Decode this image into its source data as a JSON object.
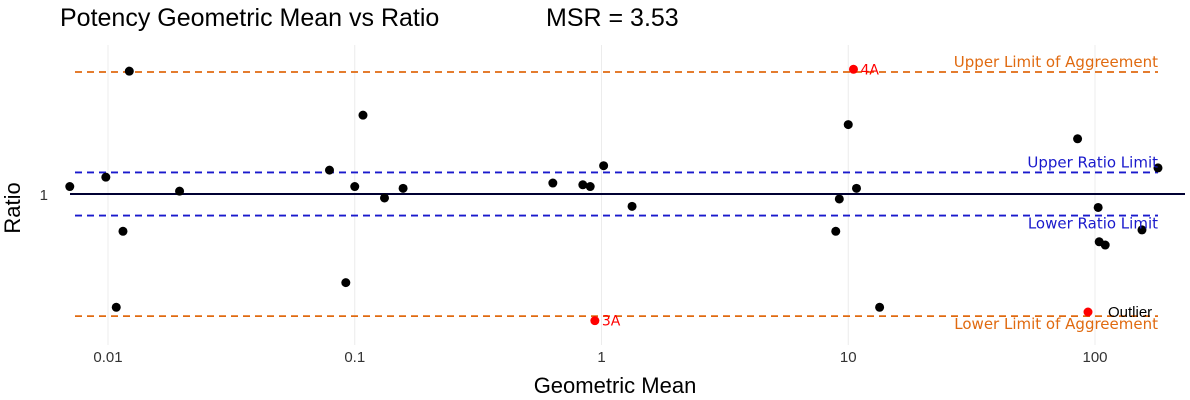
{
  "chart_data": {
    "type": "scatter",
    "title": "Potency Geometric Mean vs Ratio",
    "subtitle": "MSR = 3.53",
    "xlabel": "Geometric Mean",
    "ylabel": "Ratio",
    "x_scale": "log10",
    "y_scale": "log10",
    "xlim": [
      0.0055,
      200
    ],
    "ylim": [
      0.14,
      7.5
    ],
    "x_ticks": [
      {
        "value": 0.01,
        "label": "0.01"
      },
      {
        "value": 0.1,
        "label": "0.1"
      },
      {
        "value": 1,
        "label": "1"
      },
      {
        "value": 10,
        "label": "10"
      },
      {
        "value": 100,
        "label": "100"
      }
    ],
    "y_ticks": [
      {
        "value": 1,
        "label": "1"
      }
    ],
    "grid": "vertical-major",
    "reference_lines": [
      {
        "name": "Upper Limit of Aggreement",
        "y": 3.53,
        "color": "#e06a10",
        "style": "dashed",
        "label_pos": "top-right"
      },
      {
        "name": "Upper Ratio Limit",
        "y": 1.25,
        "color": "#1a1acc",
        "style": "dashed",
        "label_pos": "top-right"
      },
      {
        "name": "baseline",
        "y": 1.0,
        "color": "#000033",
        "style": "solid",
        "label_pos": "none"
      },
      {
        "name": "Lower Ratio Limit",
        "y": 0.8,
        "color": "#1a1acc",
        "style": "dashed",
        "label_pos": "bottom-right"
      },
      {
        "name": "Lower Limit of Aggreement",
        "y": 0.283,
        "color": "#e06a10",
        "style": "dashed",
        "label_pos": "bottom-right"
      }
    ],
    "series": [
      {
        "name": "",
        "color": "#000000",
        "points": [
          {
            "x": 0.007,
            "y": 1.08
          },
          {
            "x": 0.0098,
            "y": 1.19
          },
          {
            "x": 0.0108,
            "y": 0.31
          },
          {
            "x": 0.0115,
            "y": 0.68
          },
          {
            "x": 0.0122,
            "y": 3.56
          },
          {
            "x": 0.0195,
            "y": 1.03
          },
          {
            "x": 0.079,
            "y": 1.28
          },
          {
            "x": 0.092,
            "y": 0.4
          },
          {
            "x": 0.1,
            "y": 1.08
          },
          {
            "x": 0.108,
            "y": 2.26
          },
          {
            "x": 0.132,
            "y": 0.96
          },
          {
            "x": 0.157,
            "y": 1.06
          },
          {
            "x": 0.635,
            "y": 1.12
          },
          {
            "x": 0.84,
            "y": 1.1
          },
          {
            "x": 0.9,
            "y": 1.08
          },
          {
            "x": 1.02,
            "y": 1.34
          },
          {
            "x": 1.33,
            "y": 0.88
          },
          {
            "x": 8.9,
            "y": 0.68
          },
          {
            "x": 9.2,
            "y": 0.95
          },
          {
            "x": 10.0,
            "y": 2.05
          },
          {
            "x": 10.8,
            "y": 1.06
          },
          {
            "x": 13.4,
            "y": 0.31
          },
          {
            "x": 85,
            "y": 1.77
          },
          {
            "x": 103,
            "y": 0.87
          },
          {
            "x": 104,
            "y": 0.61
          },
          {
            "x": 110,
            "y": 0.59
          },
          {
            "x": 155,
            "y": 0.69
          },
          {
            "x": 180,
            "y": 1.31
          }
        ]
      },
      {
        "name": "Outlier",
        "color": "#ff0000",
        "points": [
          {
            "x": 10.5,
            "y": 3.63,
            "label": "4A"
          },
          {
            "x": 0.94,
            "y": 0.27,
            "label": "3A"
          }
        ]
      }
    ],
    "legend": {
      "position": "bottom-right",
      "entries": [
        "Outlier"
      ]
    }
  }
}
